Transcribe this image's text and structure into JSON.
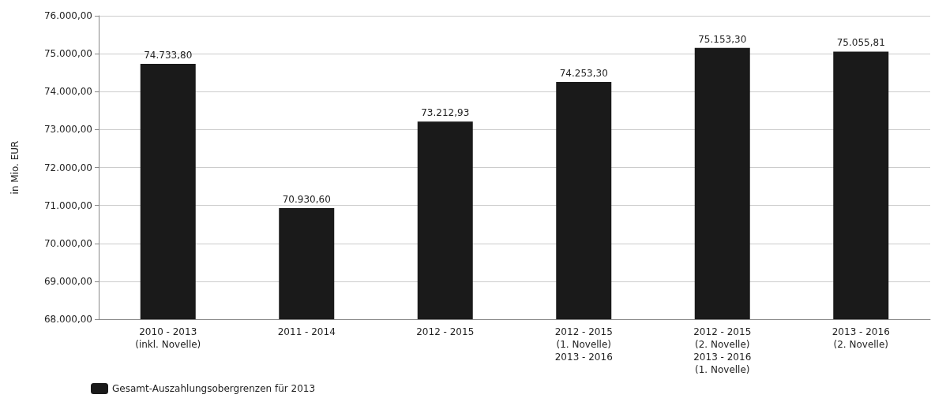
{
  "chart_data": {
    "type": "bar",
    "ylabel": "in Mio. EUR",
    "categories": [
      "2010 - 2013\n(inkl. Novelle)",
      "2011 - 2014",
      "2012 - 2015",
      "2012 - 2015\n(1. Novelle)\n2013 - 2016",
      "2012 - 2015\n(2. Novelle)\n2013 - 2016\n(1. Novelle)",
      "2013 - 2016\n(2. Novelle)"
    ],
    "series": [
      {
        "name": "Gesamt-Auszahlungsobergrenzen für 2013",
        "color": "#1a1a1a",
        "values": [
          74733.8,
          70930.6,
          73212.93,
          74253.3,
          75153.3,
          75055.81
        ],
        "value_labels": [
          "74.733,80",
          "70.930,60",
          "73.212,93",
          "74.253,30",
          "75.153,30",
          "75.055,81"
        ]
      }
    ],
    "ylim": [
      68000,
      76000
    ],
    "yticks": [
      {
        "value": 68000,
        "label": "68.000,00"
      },
      {
        "value": 69000,
        "label": "69.000,00"
      },
      {
        "value": 70000,
        "label": "70.000,00"
      },
      {
        "value": 71000,
        "label": "71.000,00"
      },
      {
        "value": 72000,
        "label": "72.000,00"
      },
      {
        "value": 73000,
        "label": "73.000,00"
      },
      {
        "value": 74000,
        "label": "74.000,00"
      },
      {
        "value": 75000,
        "label": "75.000,00"
      },
      {
        "value": 76000,
        "label": "76.000,00"
      }
    ],
    "grid": "y",
    "legend": "bottom left"
  }
}
